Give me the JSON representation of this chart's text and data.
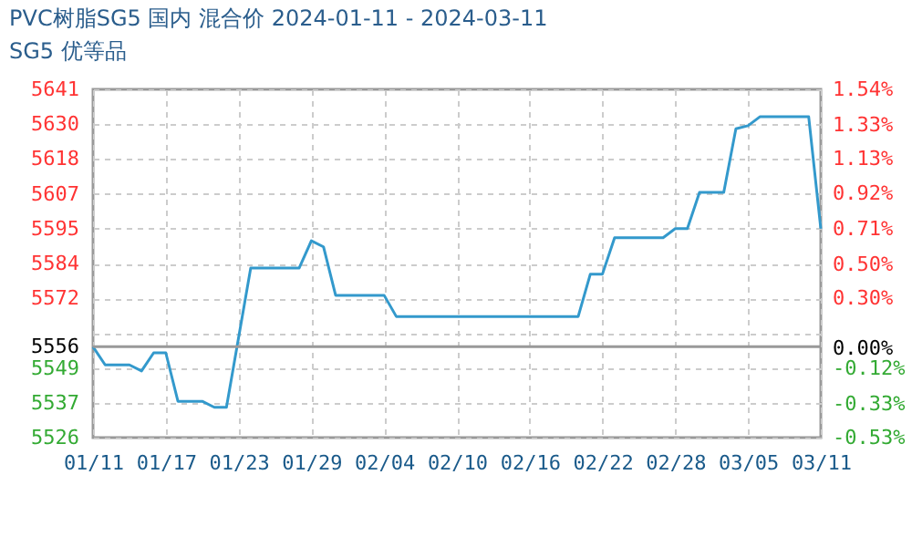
{
  "chart_data": {
    "type": "line",
    "title": "PVC树脂SG5 国内 混合价 2024-01-11 - 2024-03-11",
    "subtitle": "SG5 优等品",
    "x": [
      "2024-01-11",
      "2024-01-12",
      "2024-01-14",
      "2024-01-15",
      "2024-01-16",
      "2024-01-17",
      "2024-01-18",
      "2024-01-20",
      "2024-01-21",
      "2024-01-22",
      "2024-01-24",
      "2024-01-28",
      "2024-01-29",
      "2024-01-30",
      "2024-01-31",
      "2024-02-04",
      "2024-02-05",
      "2024-02-20",
      "2024-02-21",
      "2024-02-22",
      "2024-02-23",
      "2024-02-27",
      "2024-02-28",
      "2024-02-29",
      "2024-03-01",
      "2024-03-03",
      "2024-03-04",
      "2024-03-05",
      "2024-03-06",
      "2024-03-10",
      "2024-03-11"
    ],
    "series": [
      {
        "color": "#3399cc",
        "values": [
          5556,
          5550,
          5550,
          5548,
          5554,
          5554,
          5538,
          5538,
          5536,
          5536,
          5582,
          5582,
          5591,
          5589,
          5573,
          5573,
          5566,
          5566,
          5580,
          5580,
          5592,
          5592,
          5595,
          5595,
          5607,
          5607,
          5628,
          5629,
          5632,
          5632,
          5595
        ]
      }
    ],
    "xlim": [
      "2024-01-11",
      "2024-03-11"
    ],
    "xticks": [
      {
        "value": "2024-01-11",
        "label": "01/11"
      },
      {
        "value": "2024-01-17",
        "label": "01/17"
      },
      {
        "value": "2024-01-23",
        "label": "01/23"
      },
      {
        "value": "2024-01-29",
        "label": "01/29"
      },
      {
        "value": "2024-02-04",
        "label": "02/04"
      },
      {
        "value": "2024-02-10",
        "label": "02/10"
      },
      {
        "value": "2024-02-16",
        "label": "02/16"
      },
      {
        "value": "2024-02-22",
        "label": "02/22"
      },
      {
        "value": "2024-02-28",
        "label": "02/28"
      },
      {
        "value": "2024-03-05",
        "label": "03/05"
      },
      {
        "value": "2024-03-11",
        "label": "03/11"
      }
    ],
    "ylim": [
      5526,
      5641
    ],
    "yticks": [
      5641,
      {
        "value": 5629.5,
        "label": "5630"
      },
      5618,
      {
        "value": 5606.5,
        "label": "5607"
      },
      5595,
      {
        "value": 5583.5,
        "label": "5584"
      },
      5572,
      {
        "value": 5560.5,
        "label": null
      },
      5556,
      5549,
      {
        "value": 5537.5,
        "label": "5537"
      },
      5526
    ],
    "y2lim": [
      -0.53,
      1.54
    ],
    "y2ticks": [
      {
        "value": 1.54,
        "label": "1.54%"
      },
      {
        "value": 1.33,
        "label": "1.33%"
      },
      {
        "value": 1.13,
        "label": "1.13%"
      },
      {
        "value": 0.92,
        "label": "0.92%"
      },
      {
        "value": 0.71,
        "label": "0.71%"
      },
      {
        "value": 0.5,
        "label": "0.50%"
      },
      {
        "value": 0.3,
        "label": "0.30%"
      },
      {
        "value": 0,
        "label": "0.00%"
      },
      {
        "value": -0.12,
        "label": "-0.12%"
      },
      {
        "value": -0.33,
        "label": "-0.33%"
      },
      {
        "value": -0.53,
        "label": "-0.53%"
      }
    ],
    "ref_lines": [
      {
        "axis": "y",
        "value": 5556,
        "color": "#999999"
      }
    ],
    "grid": true
  }
}
